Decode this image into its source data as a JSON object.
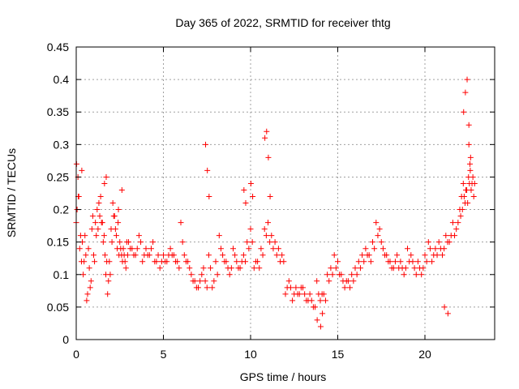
{
  "chart_data": {
    "type": "scatter",
    "title": "Day 365 of 2022, SRMTID for receiver thtg",
    "xlabel": "GPS time / hours",
    "ylabel": "SRMTID / TECUs",
    "xlim": [
      0,
      24
    ],
    "ylim": [
      0,
      0.45
    ],
    "xticks": [
      "0",
      "5",
      "10",
      "15",
      "20"
    ],
    "yticks": [
      "0",
      "0.05",
      "0.1",
      "0.15",
      "0.2",
      "0.25",
      "0.3",
      "0.35",
      "0.4",
      "0.45"
    ],
    "grid": true,
    "marker": "plus",
    "color": "#ff0000",
    "series": [
      {
        "x": [
          0.0,
          0.1,
          0.2,
          0.3,
          0.4,
          0.5,
          0.6,
          0.7,
          0.8,
          0.9,
          1.0,
          1.1,
          1.2,
          1.3,
          1.4,
          1.5,
          1.6,
          1.7,
          1.8,
          1.9,
          2.0,
          2.1,
          2.2,
          2.3,
          2.4,
          2.5,
          2.6,
          2.7,
          2.8,
          2.9,
          3.0,
          3.2,
          3.4,
          3.6,
          3.8,
          4.0,
          4.2,
          4.4,
          4.6,
          4.8,
          5.0,
          5.2,
          5.4,
          5.6,
          5.8,
          6.0,
          6.2,
          6.4,
          6.6,
          6.8,
          7.0,
          7.2,
          7.4,
          7.6,
          7.8,
          8.0,
          8.2,
          8.4,
          8.6,
          8.8,
          9.0,
          9.2,
          9.4,
          9.6,
          9.8,
          10.0,
          10.2,
          10.4,
          10.6,
          10.8,
          11.0,
          11.2,
          11.4,
          11.6,
          11.8,
          12.0,
          12.2,
          12.4,
          12.6,
          12.8,
          13.0,
          13.2,
          13.4,
          13.6,
          13.8,
          14.0,
          14.2,
          14.4,
          14.6,
          14.8,
          15.0,
          15.2,
          15.4,
          15.6,
          15.8,
          16.0,
          16.2,
          16.4,
          16.6,
          16.8,
          17.0,
          17.2,
          17.4,
          17.6,
          17.8,
          18.0,
          18.2,
          18.4,
          18.6,
          18.8,
          19.0,
          19.2,
          19.4,
          19.6,
          19.8,
          20.0,
          20.2,
          20.4,
          20.6,
          20.8,
          21.0,
          21.2,
          21.4,
          21.6,
          21.8,
          22.0,
          22.1,
          22.2,
          22.3,
          22.4,
          22.5,
          22.6,
          22.7,
          22.8,
          0.05,
          0.15,
          0.25,
          0.35,
          0.45,
          0.55,
          0.65,
          0.75,
          0.85,
          0.95,
          1.05,
          1.15,
          1.25,
          1.35,
          1.45,
          1.55,
          1.65,
          1.75,
          1.85,
          1.95,
          2.05,
          2.15,
          2.25,
          2.35,
          2.45,
          2.55,
          2.65,
          2.75,
          2.85,
          2.95,
          3.1,
          3.3,
          3.5,
          3.7,
          3.9,
          4.1,
          4.3,
          4.5,
          4.7,
          4.9,
          5.1,
          5.3,
          5.5,
          5.7,
          5.9,
          6.1,
          6.3,
          6.5,
          6.7,
          6.9,
          7.1,
          7.3,
          7.5,
          7.7,
          7.9,
          8.1,
          8.3,
          8.5,
          8.7,
          8.9,
          9.1,
          9.3,
          9.5,
          9.7,
          9.9,
          10.1,
          10.3,
          10.5,
          10.7,
          10.9,
          11.1,
          11.3,
          11.5,
          11.7,
          11.9,
          12.1,
          12.3,
          12.5,
          12.7,
          12.9,
          13.1,
          13.3,
          13.5,
          13.7,
          13.9,
          14.1,
          14.3,
          14.5,
          14.7,
          14.9,
          15.1,
          15.3,
          15.5,
          15.7,
          15.9,
          16.1,
          16.3,
          16.5,
          16.7,
          16.9,
          17.1,
          17.3,
          17.5,
          17.7,
          17.9,
          18.1,
          18.3,
          18.5,
          18.7,
          18.9,
          19.1,
          19.3,
          19.5,
          19.7,
          19.9,
          20.1,
          20.3,
          20.5,
          20.7,
          20.9,
          21.1,
          21.3,
          21.5,
          21.7,
          21.9,
          22.05,
          22.15,
          22.25,
          22.35,
          22.45,
          22.55,
          22.65,
          22.75,
          22.85,
          0.02,
          0.12,
          0.32,
          1.62,
          1.72,
          2.42,
          2.62,
          7.42,
          7.52,
          7.62,
          9.62,
          9.72,
          10.02,
          10.12,
          10.82,
          10.92,
          11.02,
          11.12,
          13.82,
          14.02,
          14.12,
          21.12,
          21.32,
          22.22,
          22.32,
          22.42,
          22.52,
          22.62,
          22.52,
          22.58
        ],
        "y": [
          0.18,
          0.25,
          0.14,
          0.12,
          0.1,
          0.16,
          0.06,
          0.14,
          0.08,
          0.17,
          0.13,
          0.18,
          0.2,
          0.21,
          0.22,
          0.18,
          0.16,
          0.1,
          0.07,
          0.12,
          0.17,
          0.21,
          0.19,
          0.16,
          0.18,
          0.15,
          0.13,
          0.14,
          0.12,
          0.15,
          0.15,
          0.14,
          0.13,
          0.16,
          0.12,
          0.14,
          0.13,
          0.15,
          0.12,
          0.11,
          0.13,
          0.12,
          0.14,
          0.13,
          0.12,
          0.18,
          0.13,
          0.12,
          0.1,
          0.09,
          0.08,
          0.1,
          0.09,
          0.13,
          0.08,
          0.12,
          0.16,
          0.13,
          0.12,
          0.1,
          0.14,
          0.12,
          0.11,
          0.13,
          0.15,
          0.17,
          0.11,
          0.12,
          0.14,
          0.17,
          0.18,
          0.16,
          0.15,
          0.14,
          0.13,
          0.07,
          0.09,
          0.06,
          0.08,
          0.07,
          0.08,
          0.06,
          0.07,
          0.05,
          0.09,
          0.06,
          0.07,
          0.1,
          0.11,
          0.13,
          0.12,
          0.1,
          0.08,
          0.09,
          0.1,
          0.11,
          0.12,
          0.13,
          0.14,
          0.13,
          0.15,
          0.18,
          0.17,
          0.14,
          0.13,
          0.12,
          0.11,
          0.13,
          0.12,
          0.1,
          0.14,
          0.13,
          0.11,
          0.12,
          0.1,
          0.13,
          0.15,
          0.12,
          0.14,
          0.15,
          0.13,
          0.16,
          0.15,
          0.18,
          0.17,
          0.2,
          0.22,
          0.24,
          0.21,
          0.23,
          0.25,
          0.26,
          0.24,
          0.22,
          0.2,
          0.22,
          0.16,
          0.15,
          0.12,
          0.13,
          0.07,
          0.11,
          0.09,
          0.19,
          0.12,
          0.16,
          0.17,
          0.19,
          0.18,
          0.15,
          0.13,
          0.12,
          0.09,
          0.1,
          0.15,
          0.19,
          0.17,
          0.14,
          0.13,
          0.14,
          0.12,
          0.13,
          0.11,
          0.13,
          0.14,
          0.13,
          0.14,
          0.15,
          0.13,
          0.13,
          0.14,
          0.12,
          0.13,
          0.12,
          0.12,
          0.13,
          0.13,
          0.12,
          0.11,
          0.15,
          0.12,
          0.11,
          0.09,
          0.08,
          0.09,
          0.11,
          0.08,
          0.11,
          0.09,
          0.1,
          0.14,
          0.12,
          0.11,
          0.11,
          0.13,
          0.11,
          0.12,
          0.12,
          0.14,
          0.15,
          0.12,
          0.11,
          0.13,
          0.16,
          0.15,
          0.14,
          0.13,
          0.12,
          0.12,
          0.08,
          0.08,
          0.07,
          0.07,
          0.08,
          0.07,
          0.06,
          0.06,
          0.05,
          0.07,
          0.07,
          0.06,
          0.09,
          0.1,
          0.11,
          0.1,
          0.09,
          0.09,
          0.08,
          0.09,
          0.1,
          0.11,
          0.12,
          0.13,
          0.12,
          0.14,
          0.16,
          0.15,
          0.13,
          0.12,
          0.11,
          0.12,
          0.11,
          0.11,
          0.11,
          0.12,
          0.12,
          0.1,
          0.11,
          0.11,
          0.12,
          0.14,
          0.13,
          0.13,
          0.14,
          0.14,
          0.15,
          0.16,
          0.16,
          0.18,
          0.19,
          0.2,
          0.22,
          0.23,
          0.21,
          0.24,
          0.23,
          0.25,
          0.24,
          0.27,
          0.22,
          0.26,
          0.24,
          0.25,
          0.2,
          0.23,
          0.3,
          0.26,
          0.22,
          0.23,
          0.21,
          0.24,
          0.22,
          0.31,
          0.32,
          0.28,
          0.22,
          0.03,
          0.02,
          0.04,
          0.05,
          0.04,
          0.35,
          0.38,
          0.4,
          0.3,
          0.28,
          0.33,
          0.27
        ]
      }
    ]
  }
}
